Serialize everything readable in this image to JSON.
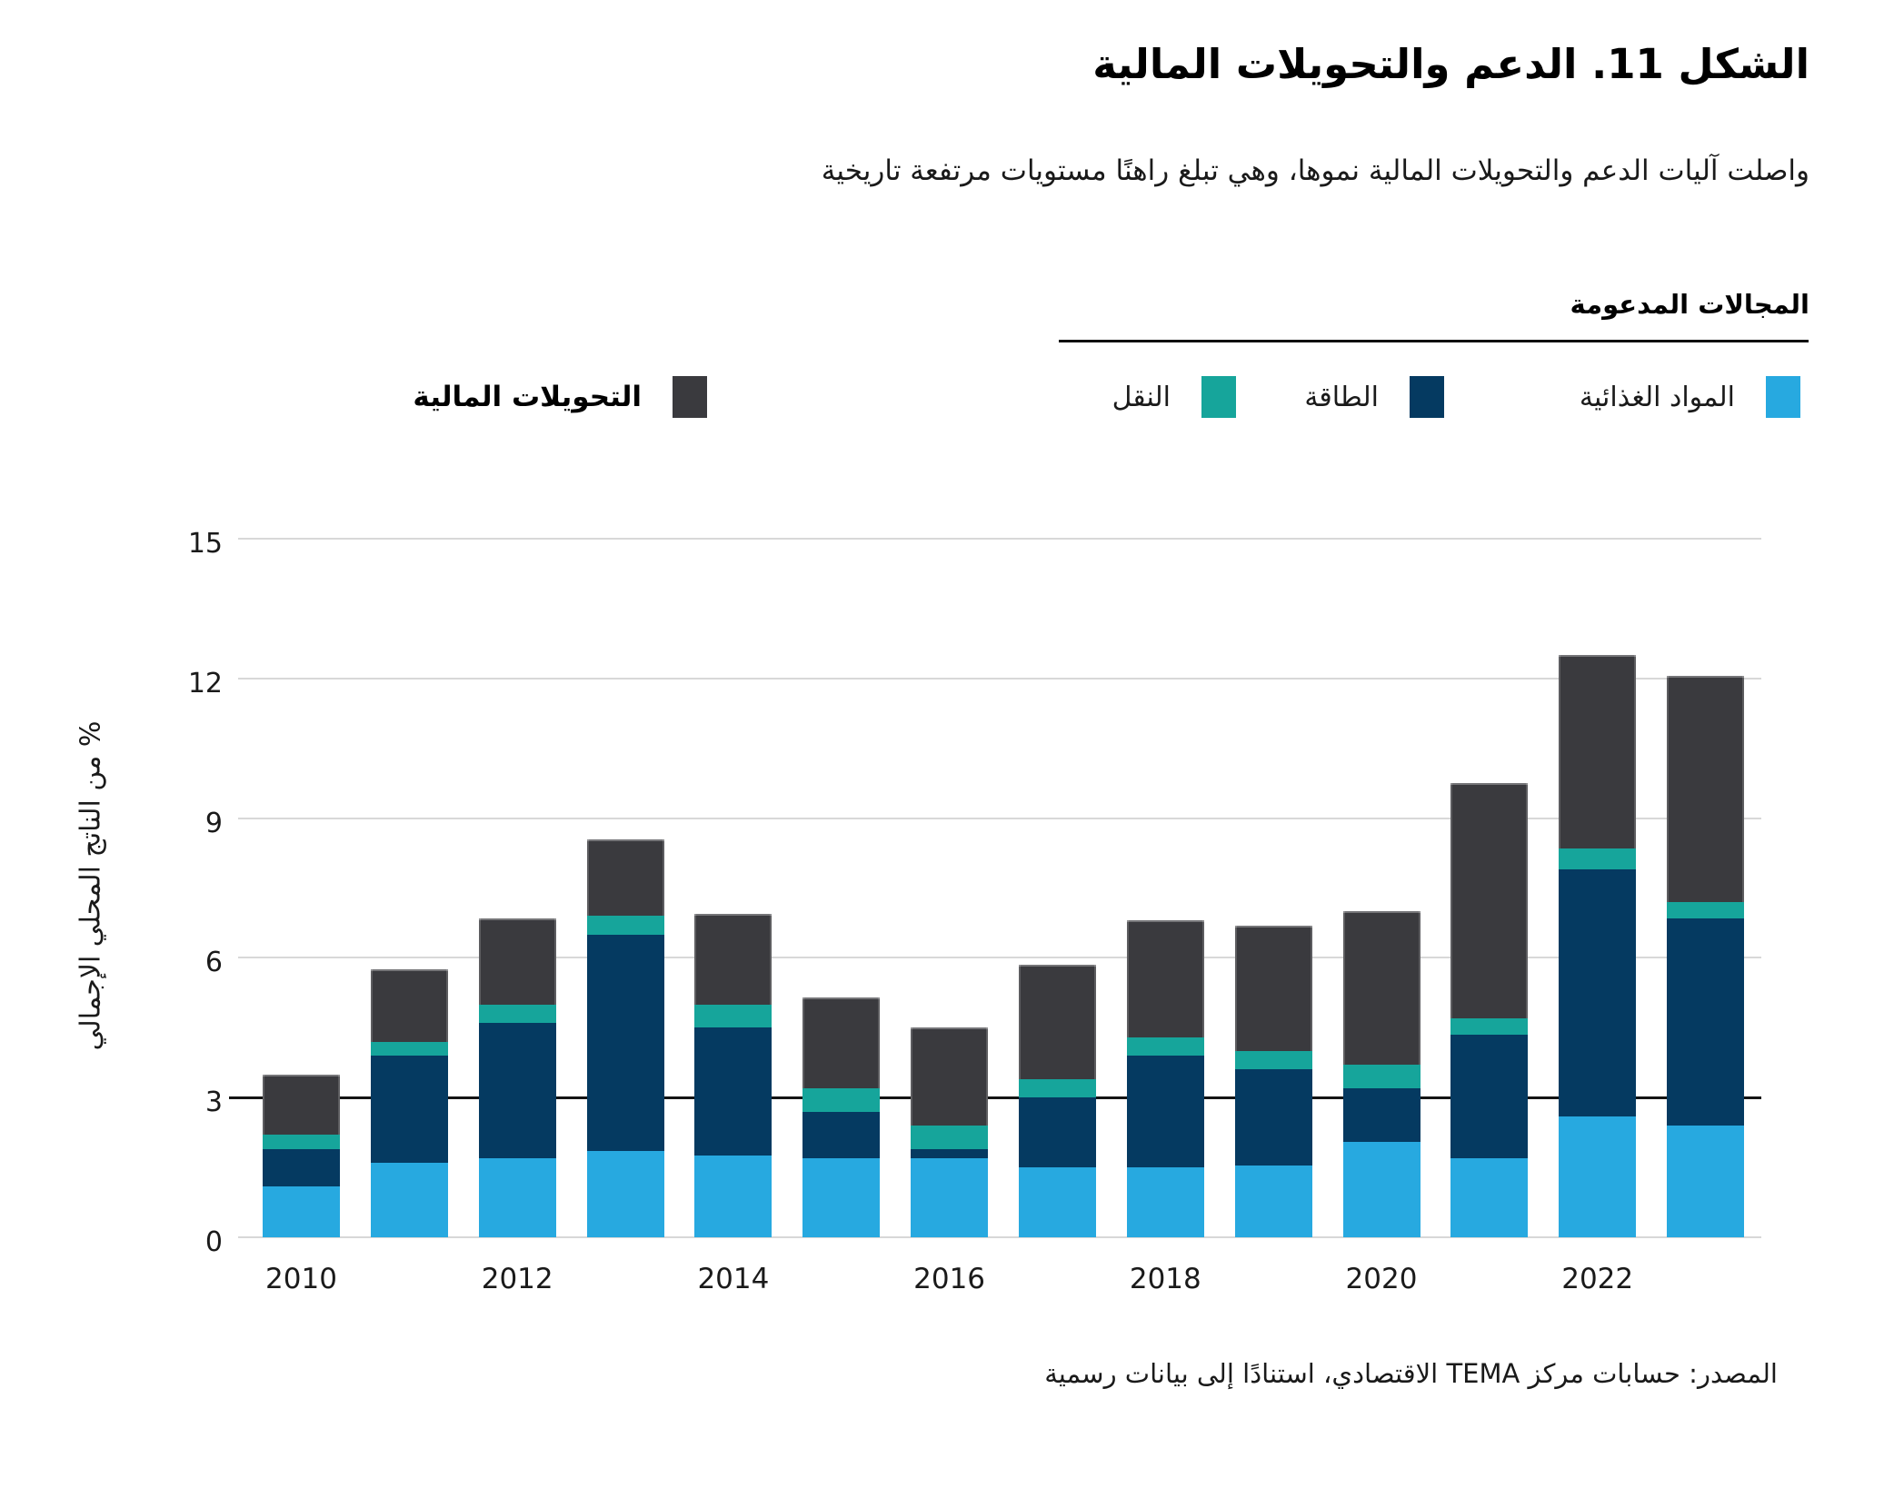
{
  "title": "الشكل 11. الدعم والتحويلات المالية",
  "subtitle": "واصلت آليات الدعم والتحويلات المالية نموها، وهي تبلغ راهنًا مستويات مرتفعة تاريخية",
  "legend": {
    "header": "المجالات المدعومة",
    "items": [
      {
        "key": "food",
        "label": "المواد الغذائية",
        "color": "#27A9E0"
      },
      {
        "key": "energy",
        "label": "الطاقة",
        "color": "#053A61"
      },
      {
        "key": "transport",
        "label": "النقل",
        "color": "#16A59B"
      }
    ],
    "transfers": {
      "key": "transfers",
      "label": "التحويلات المالية",
      "color": "#3A3A3E"
    }
  },
  "chart_data": {
    "type": "bar",
    "stacked": true,
    "title": "الشكل 11. الدعم والتحويلات المالية",
    "categories": [
      2010,
      2011,
      2012,
      2013,
      2014,
      2015,
      2016,
      2017,
      2018,
      2019,
      2020,
      2021,
      2022,
      2023
    ],
    "series": [
      {
        "name": "المواد الغذائية",
        "key": "food",
        "color": "#27A9E0",
        "values": [
          1.1,
          1.6,
          1.7,
          1.85,
          1.75,
          1.7,
          1.7,
          1.5,
          1.5,
          1.55,
          2.05,
          1.7,
          2.6,
          2.4
        ]
      },
      {
        "name": "الطاقة",
        "key": "energy",
        "color": "#053A61",
        "values": [
          0.8,
          2.3,
          2.9,
          4.65,
          2.75,
          1.0,
          0.2,
          1.5,
          2.4,
          2.05,
          1.15,
          2.65,
          5.3,
          4.45
        ]
      },
      {
        "name": "النقل",
        "key": "transport",
        "color": "#16A59B",
        "values": [
          0.3,
          0.3,
          0.4,
          0.4,
          0.5,
          0.5,
          0.5,
          0.4,
          0.4,
          0.4,
          0.5,
          0.35,
          0.45,
          0.35
        ]
      },
      {
        "name": "التحويلات المالية",
        "key": "transfers",
        "color": "#3A3A3E",
        "values": [
          1.3,
          1.55,
          1.85,
          1.65,
          1.95,
          1.95,
          2.1,
          2.45,
          2.5,
          2.7,
          3.3,
          5.05,
          4.15,
          4.85
        ]
      }
    ],
    "totals": [
      3.5,
      5.75,
      6.85,
      8.55,
      6.95,
      5.15,
      4.5,
      5.85,
      6.8,
      6.7,
      7.0,
      9.75,
      12.5,
      12.05
    ],
    "ylabel": "% من الناتج المحلي الإجمالي",
    "ylim": [
      0,
      15
    ],
    "yticks": [
      0,
      3,
      6,
      9,
      12,
      15
    ],
    "highlight_gridline": 3,
    "grid": true,
    "xtick_labels": [
      "2010",
      "2012",
      "2014",
      "2016",
      "2018",
      "2020",
      "2022"
    ],
    "xtick_bar_indices": [
      0,
      2,
      4,
      6,
      8,
      10,
      12
    ],
    "legend_position": "top"
  },
  "colors": {
    "food": "#27A9E0",
    "energy": "#053A61",
    "transport": "#16A59B",
    "transfers": "#3A3A3E",
    "gridline": "#d8d8d8",
    "highlight_line": "#141414",
    "text": "#1a1a1a"
  },
  "source": "المصدر: حسابات مركز TEMA الاقتصادي، استنادًا إلى بيانات رسمية"
}
